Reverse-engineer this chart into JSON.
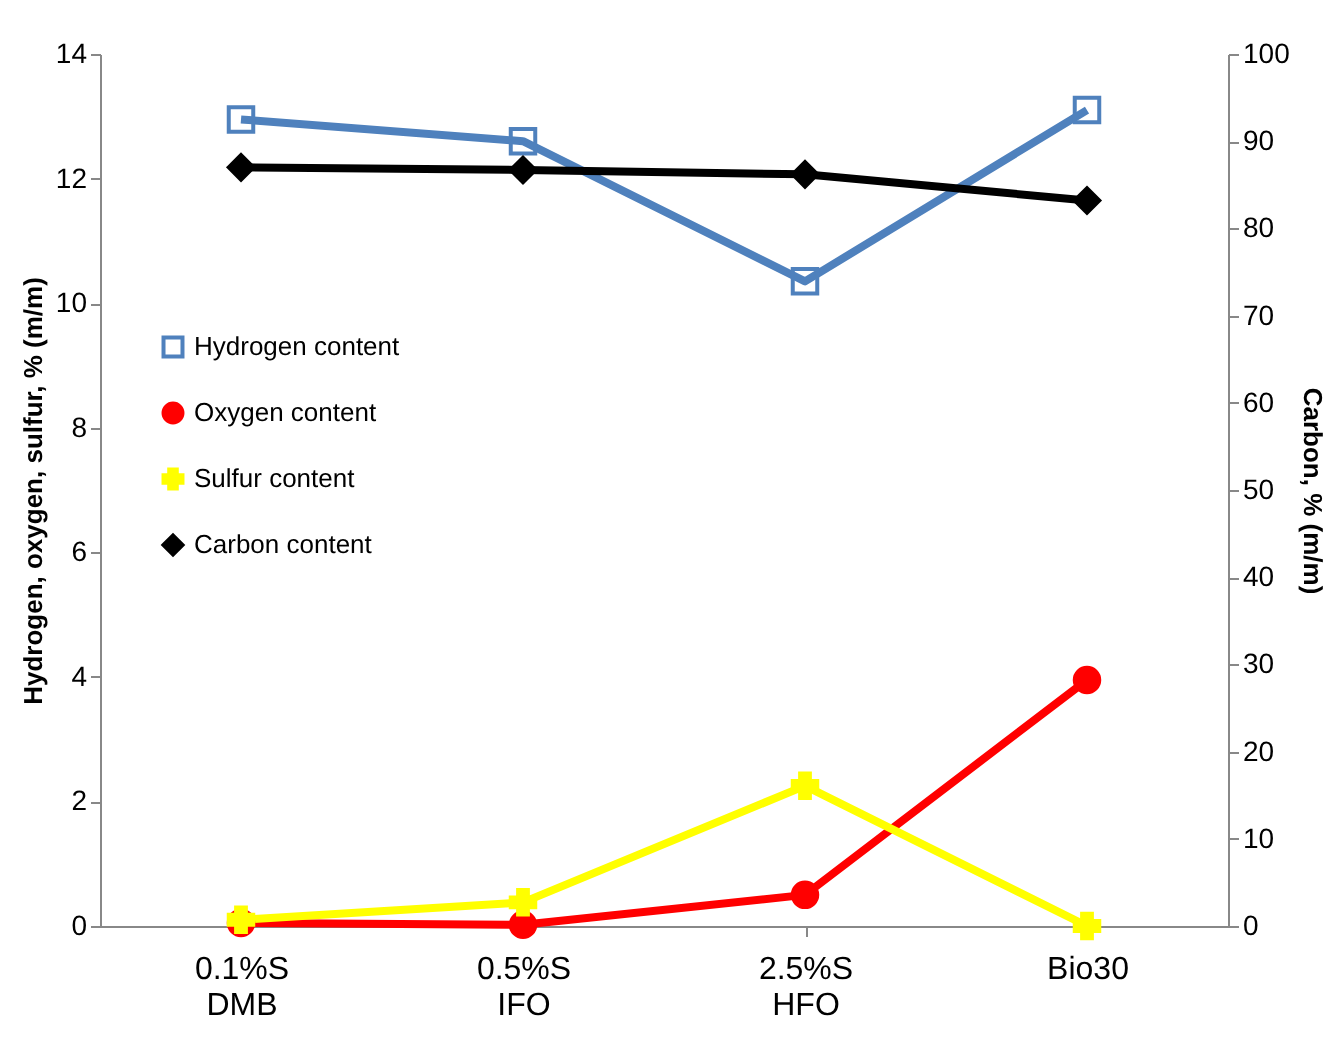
{
  "chart_data": {
    "type": "line",
    "ylabel": "Hydrogen, oxygen, sulfur, % (m/m)",
    "y2label": "Carbon, % (m/m)",
    "categories": [
      "0.1%S\nDMB",
      "0.5%S\nIFO",
      "2.5%S\nHFO",
      "Bio30"
    ],
    "series": [
      {
        "name": "Hydrogen content",
        "color": "#4f81bd",
        "marker": "square",
        "values": [
          12.95,
          12.6,
          10.35,
          13.1
        ]
      },
      {
        "name": "Oxygen content",
        "color": "#ff0000",
        "marker": "circle",
        "values": [
          0.05,
          0.02,
          0.5,
          3.95
        ]
      },
      {
        "name": "Sulfur content",
        "color": "#ffff00",
        "marker": "cross",
        "values": [
          0.1,
          0.38,
          2.25,
          0
        ]
      },
      {
        "name": "Carbon content",
        "color": "#000000",
        "marker": "diamond",
        "axis": "y2",
        "values": [
          87,
          86.7,
          86.2,
          83.2
        ]
      }
    ],
    "ylim": [
      0,
      14
    ],
    "yticks": [
      0,
      2,
      4,
      6,
      8,
      10,
      12,
      14
    ],
    "y2lim": [
      0,
      100
    ],
    "y2ticks": [
      0,
      10,
      20,
      30,
      40,
      50,
      60,
      70,
      80,
      90,
      100
    ],
    "grid": false,
    "legend": "left"
  }
}
